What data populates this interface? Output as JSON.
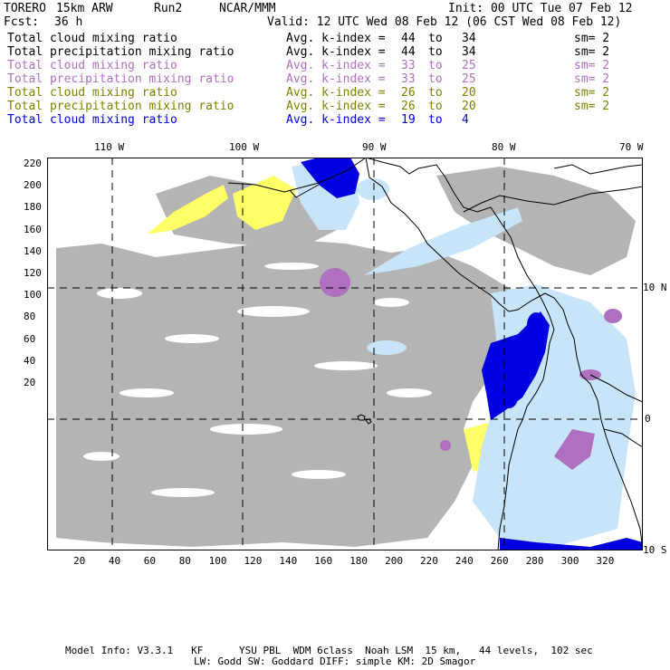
{
  "header": {
    "model": "TORERO",
    "resolution": "15km ARW",
    "run": "Run2",
    "org": "NCAR/MMM",
    "init": "Init: 00 UTC Tue 07 Feb 12",
    "fcst_label": "Fcst:",
    "fcst_value": "36 h",
    "valid": "Valid: 12 UTC Wed 08 Feb 12 (06 CST Wed 08 Feb 12)"
  },
  "legend": [
    {
      "field": "Total cloud mixing ratio",
      "kindex": "Avg. k-index =",
      "from": "44",
      "to_word": "to",
      "to": "34",
      "sm": "sm= 2",
      "color": "#000000"
    },
    {
      "field": "Total precipitation mixing ratio",
      "kindex": "Avg. k-index =",
      "from": "44",
      "to_word": "to",
      "to": "34",
      "sm": "sm= 2",
      "color": "#000000"
    },
    {
      "field": "Total cloud mixing ratio",
      "kindex": "Avg. k-index =",
      "from": "33",
      "to_word": "to",
      "to": "25",
      "sm": "sm= 2",
      "color": "#b070c0"
    },
    {
      "field": "Total precipitation mixing ratio",
      "kindex": "Avg. k-index =",
      "from": "33",
      "to_word": "to",
      "to": "25",
      "sm": "sm= 2",
      "color": "#b070c0"
    },
    {
      "field": "Total cloud mixing ratio",
      "kindex": "Avg. k-index =",
      "from": "26",
      "to_word": "to",
      "to": "20",
      "sm": "sm= 2",
      "color": "#808000"
    },
    {
      "field": "Total precipitation mixing ratio",
      "kindex": "Avg. k-index =",
      "from": "26",
      "to_word": "to",
      "to": "20",
      "sm": "sm= 2",
      "color": "#808000"
    },
    {
      "field": "Total cloud mixing ratio",
      "kindex": "Avg. k-index =",
      "from": "19",
      "to_word": "to",
      "to": "4",
      "sm": "",
      "color": "#0000e0"
    }
  ],
  "map": {
    "top_labels": [
      "110 W",
      "100 W",
      "90 W",
      "80 W",
      "70 W"
    ],
    "right_labels": [
      "10 N",
      "0",
      "10 S"
    ],
    "left_ticks": [
      "220",
      "200",
      "180",
      "160",
      "140",
      "120",
      "100",
      "80",
      "60",
      "40",
      "20"
    ],
    "bottom_ticks": [
      "20",
      "40",
      "60",
      "80",
      "100",
      "120",
      "140",
      "160",
      "180",
      "200",
      "220",
      "240",
      "260",
      "280",
      "300",
      "320"
    ],
    "colors": {
      "gray": "#b4b4b4",
      "yellow": "#ffff66",
      "purple": "#b070c0",
      "lightblue": "#c8e4f8",
      "blue": "#0000e0"
    }
  },
  "footer": {
    "line1": "Model Info: V3.3.1   KF      YSU PBL  WDM 6class  Noah LSM  15 km,   44 levels,  102 sec",
    "line2": "LW: Godd SW: Goddard DIFF: simple KM: 2D Smagor"
  }
}
